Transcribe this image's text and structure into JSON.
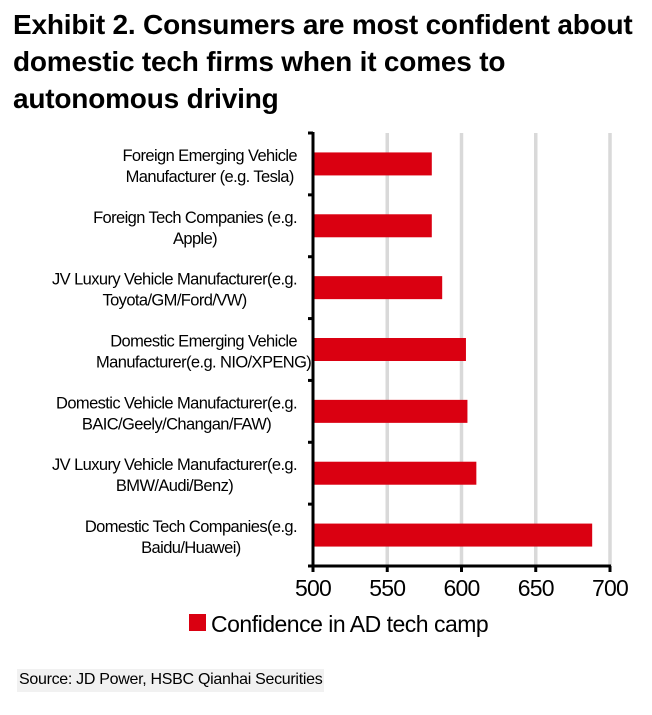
{
  "title": "Exhibit 2. Consumers are most confident about domestic tech firms when it comes to autonomous driving",
  "source": "Source: JD Power, HSBC Qianhai Securities",
  "colors": {
    "bar": "#DA0011",
    "grid": "#D9D9D9",
    "axis": "#000000"
  },
  "chart_data": {
    "type": "bar",
    "orientation": "horizontal",
    "title": "Exhibit 2. Consumers are most confident about domestic tech firms when it comes to autonomous driving",
    "xlabel": "",
    "ylabel": "",
    "xlim": [
      500,
      700
    ],
    "xticks": [
      500,
      550,
      600,
      650,
      700
    ],
    "grid": true,
    "legend": {
      "position": "bottom",
      "entries": [
        "Confidence in AD tech camp"
      ]
    },
    "categories": [
      [
        "Foreign Emerging Vehicle",
        "Manufacturer (e.g. Tesla)"
      ],
      [
        "Foreign Tech Companies (e.g.",
        "Apple)"
      ],
      [
        "JV Luxury Vehicle Manufacturer(e.g.",
        "Toyota/GM/Ford/VW)"
      ],
      [
        "Domestic Emerging Vehicle",
        "Manufacturer(e.g. NIO/XPENG)"
      ],
      [
        "Domestic Vehicle Manufacturer(e.g.",
        "BAIC/Geely/Changan/FAW)"
      ],
      [
        "JV Luxury Vehicle Manufacturer(e.g.",
        "BMW/Audi/Benz)"
      ],
      [
        "Domestic Tech Companies(e.g.",
        "Baidu/Huawei)"
      ]
    ],
    "series": [
      {
        "name": "Confidence in AD tech camp",
        "values": [
          580,
          580,
          587,
          603,
          604,
          610,
          688
        ]
      }
    ]
  }
}
